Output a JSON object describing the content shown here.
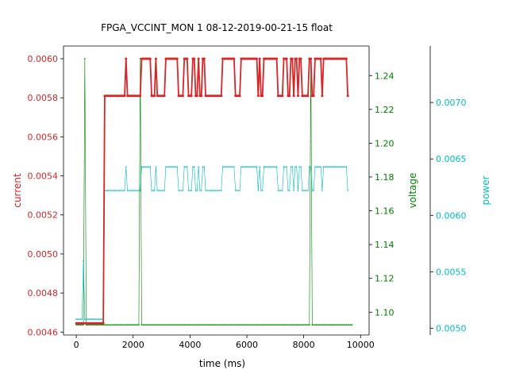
{
  "chart_data": {
    "type": "line",
    "title": "FPGA_VCCINT_MON   1   08-12-2019-00-21-15   float",
    "xlabel": "time (ms)",
    "xlim": [
      -450,
      10300
    ],
    "xticks": [
      0,
      2000,
      4000,
      6000,
      8000,
      10000
    ],
    "grid": false,
    "axes": [
      {
        "id": "current",
        "label": "current",
        "color": "#d62728",
        "side": "left",
        "ylim": [
          0.004585,
          0.006065
        ],
        "ticks": [
          0.0046,
          0.0048,
          0.005,
          0.0052,
          0.0054,
          0.0056,
          0.0058,
          0.006
        ],
        "tick_labels": [
          "0.0046",
          "0.0048",
          "0.0050",
          "0.0052",
          "0.0054",
          "0.0056",
          "0.0058",
          "0.0060"
        ]
      },
      {
        "id": "voltage",
        "label": "voltage",
        "color": "#008000",
        "side": "right",
        "ylim": [
          1.0865,
          1.2575
        ],
        "ticks": [
          1.1,
          1.12,
          1.14,
          1.16,
          1.18,
          1.2,
          1.22,
          1.24
        ],
        "tick_labels": [
          "1.10",
          "1.12",
          "1.14",
          "1.16",
          "1.18",
          "1.20",
          "1.22",
          "1.24"
        ]
      },
      {
        "id": "power",
        "label": "power",
        "color": "#00bfbf",
        "side": "right-outer",
        "ylim": [
          0.00494,
          0.0075
        ],
        "ticks": [
          0.005,
          0.0055,
          0.006,
          0.0065,
          0.007
        ],
        "tick_labels": [
          "0.0050",
          "0.0055",
          "0.0060",
          "0.0065",
          "0.0070"
        ]
      }
    ],
    "x_start": 0,
    "x_step": 50,
    "series": [
      {
        "axis": "current",
        "color": "#d62728",
        "values": [
          0.004645,
          0.004645,
          0.004645,
          0.004645,
          0.004645,
          0.004645,
          0.004645,
          0.004645,
          0.004645,
          0.004645,
          0.004645,
          0.004645,
          0.004645,
          0.004645,
          0.004645,
          0.004645,
          0.004645,
          0.004645,
          0.004645,
          0.004645,
          0.00581,
          0.00581,
          0.00581,
          0.00581,
          0.00581,
          0.00581,
          0.00581,
          0.00581,
          0.00581,
          0.00581,
          0.00581,
          0.00581,
          0.00581,
          0.00581,
          0.00581,
          0.006,
          0.00581,
          0.00581,
          0.00581,
          0.00581,
          0.00581,
          0.00581,
          0.00581,
          0.00581,
          0.00581,
          0.00581,
          0.006,
          0.006,
          0.006,
          0.006,
          0.006,
          0.006,
          0.006,
          0.00581,
          0.00581,
          0.00581,
          0.006,
          0.00581,
          0.00581,
          0.00581,
          0.00581,
          0.00581,
          0.00581,
          0.006,
          0.006,
          0.006,
          0.006,
          0.006,
          0.006,
          0.006,
          0.006,
          0.006,
          0.00581,
          0.00581,
          0.00581,
          0.00581,
          0.006,
          0.006,
          0.006,
          0.00581,
          0.00581,
          0.00581,
          0.006,
          0.006,
          0.00581,
          0.00581,
          0.006,
          0.00581,
          0.00581,
          0.006,
          0.006,
          0.00581,
          0.00581,
          0.00581,
          0.00581,
          0.00581,
          0.00581,
          0.00581,
          0.00581,
          0.00581,
          0.00581,
          0.00581,
          0.00581,
          0.006,
          0.006,
          0.006,
          0.006,
          0.006,
          0.006,
          0.006,
          0.006,
          0.006,
          0.00581,
          0.00581,
          0.00581,
          0.00581,
          0.006,
          0.006,
          0.006,
          0.006,
          0.006,
          0.006,
          0.006,
          0.006,
          0.006,
          0.006,
          0.006,
          0.006,
          0.00581,
          0.006,
          0.00581,
          0.00581,
          0.006,
          0.006,
          0.006,
          0.006,
          0.006,
          0.006,
          0.006,
          0.006,
          0.006,
          0.006,
          0.00581,
          0.00581,
          0.00581,
          0.00581,
          0.006,
          0.006,
          0.006,
          0.00581,
          0.00581,
          0.006,
          0.006,
          0.00581,
          0.006,
          0.006,
          0.00581,
          0.006,
          0.006,
          0.00581,
          0.00581,
          0.00581,
          0.00581,
          0.00581,
          0.006,
          0.006,
          0.00581,
          0.00581,
          0.006,
          0.006,
          0.006,
          0.006,
          0.006,
          0.00581,
          0.006,
          0.006,
          0.006,
          0.006,
          0.006,
          0.006,
          0.006,
          0.006,
          0.006,
          0.006,
          0.006,
          0.006,
          0.006,
          0.006,
          0.006,
          0.006,
          0.006,
          0.00581
        ]
      },
      {
        "axis": "voltage",
        "color": "#008000",
        "values": [
          1.0925,
          1.0925,
          1.0925,
          1.0925,
          1.0925,
          1.0925,
          1.25,
          1.0925,
          1.0925,
          1.0925,
          1.0925,
          1.0925,
          1.0925,
          1.0925,
          1.0925,
          1.0925,
          1.0925,
          1.0925,
          1.0925,
          1.0925,
          1.0925,
          1.0925,
          1.0925,
          1.0925,
          1.0925,
          1.0925,
          1.0925,
          1.0925,
          1.0925,
          1.0925,
          1.0925,
          1.0925,
          1.0925,
          1.0925,
          1.0925,
          1.0925,
          1.0925,
          1.0925,
          1.0925,
          1.0925,
          1.0925,
          1.0925,
          1.0925,
          1.0925,
          1.0925,
          1.25,
          1.0925,
          1.0925,
          1.0925,
          1.0925,
          1.0925,
          1.0925,
          1.0925,
          1.0925,
          1.0925,
          1.0925,
          1.0925,
          1.0925,
          1.0925,
          1.0925,
          1.0925,
          1.0925,
          1.0925,
          1.0925,
          1.0925,
          1.0925,
          1.0925,
          1.0925,
          1.0925,
          1.0925,
          1.0925,
          1.0925,
          1.0925,
          1.0925,
          1.0925,
          1.0925,
          1.0925,
          1.0925,
          1.0925,
          1.0925,
          1.0925,
          1.0925,
          1.0925,
          1.0925,
          1.0925,
          1.0925,
          1.0925,
          1.0925,
          1.0925,
          1.0925,
          1.0925,
          1.0925,
          1.0925,
          1.0925,
          1.0925,
          1.0925,
          1.0925,
          1.0925,
          1.0925,
          1.0925,
          1.0925,
          1.0925,
          1.0925,
          1.0925,
          1.0925,
          1.0925,
          1.0925,
          1.0925,
          1.0925,
          1.0925,
          1.0925,
          1.0925,
          1.0925,
          1.0925,
          1.0925,
          1.0925,
          1.0925,
          1.0925,
          1.0925,
          1.0925,
          1.0925,
          1.0925,
          1.0925,
          1.0925,
          1.0925,
          1.0925,
          1.0925,
          1.0925,
          1.0925,
          1.0925,
          1.0925,
          1.0925,
          1.0925,
          1.0925,
          1.0925,
          1.0925,
          1.0925,
          1.0925,
          1.0925,
          1.0925,
          1.0925,
          1.0925,
          1.0925,
          1.0925,
          1.0925,
          1.0925,
          1.0925,
          1.0925,
          1.0925,
          1.0925,
          1.0925,
          1.0925,
          1.0925,
          1.0925,
          1.0925,
          1.0925,
          1.0925,
          1.0925,
          1.0925,
          1.0925,
          1.0925,
          1.0925,
          1.0925,
          1.0925,
          1.0925,
          1.25,
          1.0925,
          1.0925,
          1.0925,
          1.0925,
          1.0925,
          1.0925,
          1.0925,
          1.0925,
          1.0925,
          1.0925,
          1.0925,
          1.0925,
          1.0925,
          1.0925,
          1.0925,
          1.0925,
          1.0925,
          1.0925,
          1.0925,
          1.0925,
          1.0925,
          1.0925,
          1.0925,
          1.0925,
          1.0925,
          1.0925,
          1.0925,
          1.0925,
          1.0925
        ]
      },
      {
        "axis": "power",
        "color": "#00bfbf",
        "values": [
          0.00508,
          0.00508,
          0.00508,
          0.00508,
          0.00508,
          0.0056,
          0.00508,
          0.00508,
          0.00508,
          0.00508,
          0.00508,
          0.00508,
          0.00508,
          0.00508,
          0.00508,
          0.00508,
          0.00508,
          0.00508,
          0.00508,
          0.00508,
          0.00622,
          0.00622,
          0.00622,
          0.00622,
          0.00622,
          0.00622,
          0.00622,
          0.00622,
          0.00622,
          0.00622,
          0.00622,
          0.00622,
          0.00622,
          0.00622,
          0.00622,
          0.00643,
          0.00622,
          0.00622,
          0.00622,
          0.00622,
          0.00622,
          0.00622,
          0.00622,
          0.00622,
          0.00622,
          0.00622,
          0.00643,
          0.00643,
          0.00643,
          0.00643,
          0.00643,
          0.00643,
          0.00643,
          0.00622,
          0.00622,
          0.00622,
          0.00643,
          0.00622,
          0.00622,
          0.00622,
          0.00622,
          0.00622,
          0.00622,
          0.00643,
          0.00643,
          0.00643,
          0.00643,
          0.00643,
          0.00643,
          0.00643,
          0.00643,
          0.00643,
          0.00622,
          0.00622,
          0.00622,
          0.00622,
          0.00643,
          0.00643,
          0.00643,
          0.00622,
          0.00622,
          0.00622,
          0.00643,
          0.00643,
          0.00622,
          0.00622,
          0.00643,
          0.00622,
          0.00622,
          0.00643,
          0.00643,
          0.00622,
          0.00622,
          0.00622,
          0.00622,
          0.00622,
          0.00622,
          0.00622,
          0.00622,
          0.00622,
          0.00622,
          0.00622,
          0.00622,
          0.00643,
          0.00643,
          0.00643,
          0.00643,
          0.00643,
          0.00643,
          0.00643,
          0.00643,
          0.00643,
          0.00622,
          0.00622,
          0.00622,
          0.00622,
          0.00643,
          0.00643,
          0.00643,
          0.00643,
          0.00643,
          0.00643,
          0.00643,
          0.00643,
          0.00643,
          0.00643,
          0.00643,
          0.00643,
          0.00622,
          0.00643,
          0.00622,
          0.00622,
          0.00643,
          0.00643,
          0.00643,
          0.00643,
          0.00643,
          0.00643,
          0.00643,
          0.00643,
          0.00643,
          0.00643,
          0.00622,
          0.00622,
          0.00622,
          0.00622,
          0.00643,
          0.00643,
          0.00643,
          0.00622,
          0.00622,
          0.00643,
          0.00643,
          0.00622,
          0.00643,
          0.00643,
          0.00622,
          0.00643,
          0.00643,
          0.00622,
          0.00622,
          0.00622,
          0.00622,
          0.00622,
          0.00643,
          0.00643,
          0.00622,
          0.00622,
          0.00643,
          0.00643,
          0.00643,
          0.00643,
          0.00643,
          0.00622,
          0.00643,
          0.00643,
          0.00643,
          0.00643,
          0.00643,
          0.00643,
          0.00643,
          0.00643,
          0.00643,
          0.00643,
          0.00643,
          0.00643,
          0.00643,
          0.00643,
          0.00643,
          0.00643,
          0.00643,
          0.00622
        ]
      }
    ]
  }
}
